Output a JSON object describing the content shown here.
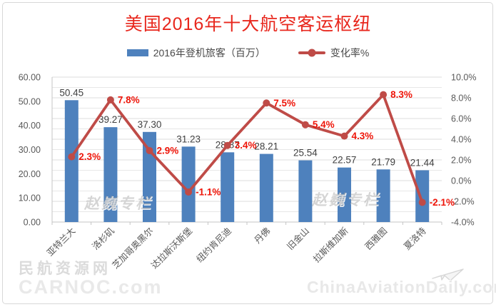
{
  "title": "美国2016年十大航空客运枢纽",
  "legend": [
    {
      "label": "2016年登机旅客（百万）",
      "type": "bar"
    },
    {
      "label": "变化率%",
      "type": "line"
    }
  ],
  "watermarks": {
    "column": "赵巍专栏",
    "carnoc_line1": "民航资源网",
    "carnoc_line2": "CARNOC.com",
    "cad": "ChinaAviationDaily.com"
  },
  "colors": {
    "bar": "#4e81bd",
    "line": "#bf4b47",
    "title": "#e8271d",
    "rate_label": "#ee1509",
    "bar_label": "#404040",
    "tick_text": "#595959",
    "grid_minor": "#e7e7e7",
    "grid_major": "#dcdcdc",
    "axis_line": "#c4c4c4"
  },
  "chart_data": {
    "type": "bar+line",
    "title": "美国2016年十大航空客运枢纽",
    "categories": [
      "亚特兰大",
      "洛杉矶",
      "芝加哥奥黑尔",
      "达拉斯沃斯堡",
      "纽约肯尼迪",
      "丹佛",
      "旧金山",
      "拉斯维加斯",
      "西雅图",
      "夏洛特"
    ],
    "series": [
      {
        "name": "2016年登机旅客（百万）",
        "type": "bar",
        "axis": "left",
        "values": [
          50.45,
          39.27,
          37.3,
          31.23,
          28.87,
          28.21,
          25.54,
          22.57,
          21.79,
          21.44
        ],
        "labels": [
          "50.45",
          "39.27",
          "37.30",
          "31.23",
          "28.87",
          "28.21",
          "25.54",
          "22.57",
          "21.79",
          "21.44"
        ]
      },
      {
        "name": "变化率%",
        "type": "line",
        "axis": "right",
        "values": [
          2.3,
          7.8,
          2.9,
          -1.1,
          3.4,
          7.5,
          5.4,
          4.3,
          8.3,
          -2.1
        ],
        "labels": [
          "2.3%",
          "7.8%",
          "2.9%",
          "-1.1%",
          "3.4%",
          "7.5%",
          "5.4%",
          "4.3%",
          "8.3%",
          "-2.1%"
        ]
      }
    ],
    "left_axis": {
      "min": 0,
      "max": 60,
      "tick_labels_bottom_up": [
        "0.00",
        "10.00",
        "20.00",
        "30.00",
        "40.00",
        "50.00",
        "60.00"
      ]
    },
    "right_axis": {
      "min": -4,
      "max": 10,
      "minor_grid_step": 1,
      "tick_labels_bottom_up": [
        "-4.0%",
        "-2.0%",
        "0.0%",
        "2.0%",
        "4.0%",
        "6.0%",
        "8.0%",
        "10.0%"
      ]
    },
    "grid": true,
    "legend_position": "top",
    "x_label_rotation_deg": -45
  }
}
